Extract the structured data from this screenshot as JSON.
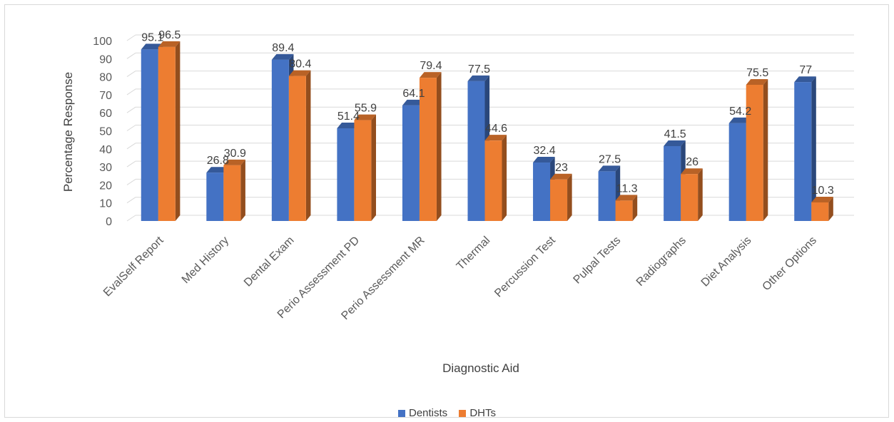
{
  "chart_data": {
    "type": "bar",
    "title": "",
    "xlabel": "Diagnostic Aid",
    "ylabel": "Percentage Response",
    "ylim": [
      0,
      100
    ],
    "yticks": [
      0,
      10,
      20,
      30,
      40,
      50,
      60,
      70,
      80,
      90,
      100
    ],
    "grid": true,
    "legend_position": "bottom",
    "categories": [
      "EvalSelf Report",
      "Med History",
      "Dental Exam",
      "Perio Assessment PD",
      "Perio Assessment MR",
      "Thermal",
      "Percussion Test",
      "Pulpal Tests",
      "Radiographs",
      "Diet Analysis",
      "Other Options"
    ],
    "series": [
      {
        "name": "Dentists",
        "color": "#4472c4",
        "values": [
          95.1,
          26.8,
          89.4,
          51.4,
          64.1,
          77.5,
          32.4,
          27.5,
          41.5,
          54.2,
          77
        ]
      },
      {
        "name": "DHTs",
        "color": "#ed7d31",
        "values": [
          96.5,
          30.9,
          80.4,
          55.9,
          79.4,
          44.6,
          23,
          11.3,
          26,
          75.5,
          10.3
        ]
      }
    ]
  }
}
